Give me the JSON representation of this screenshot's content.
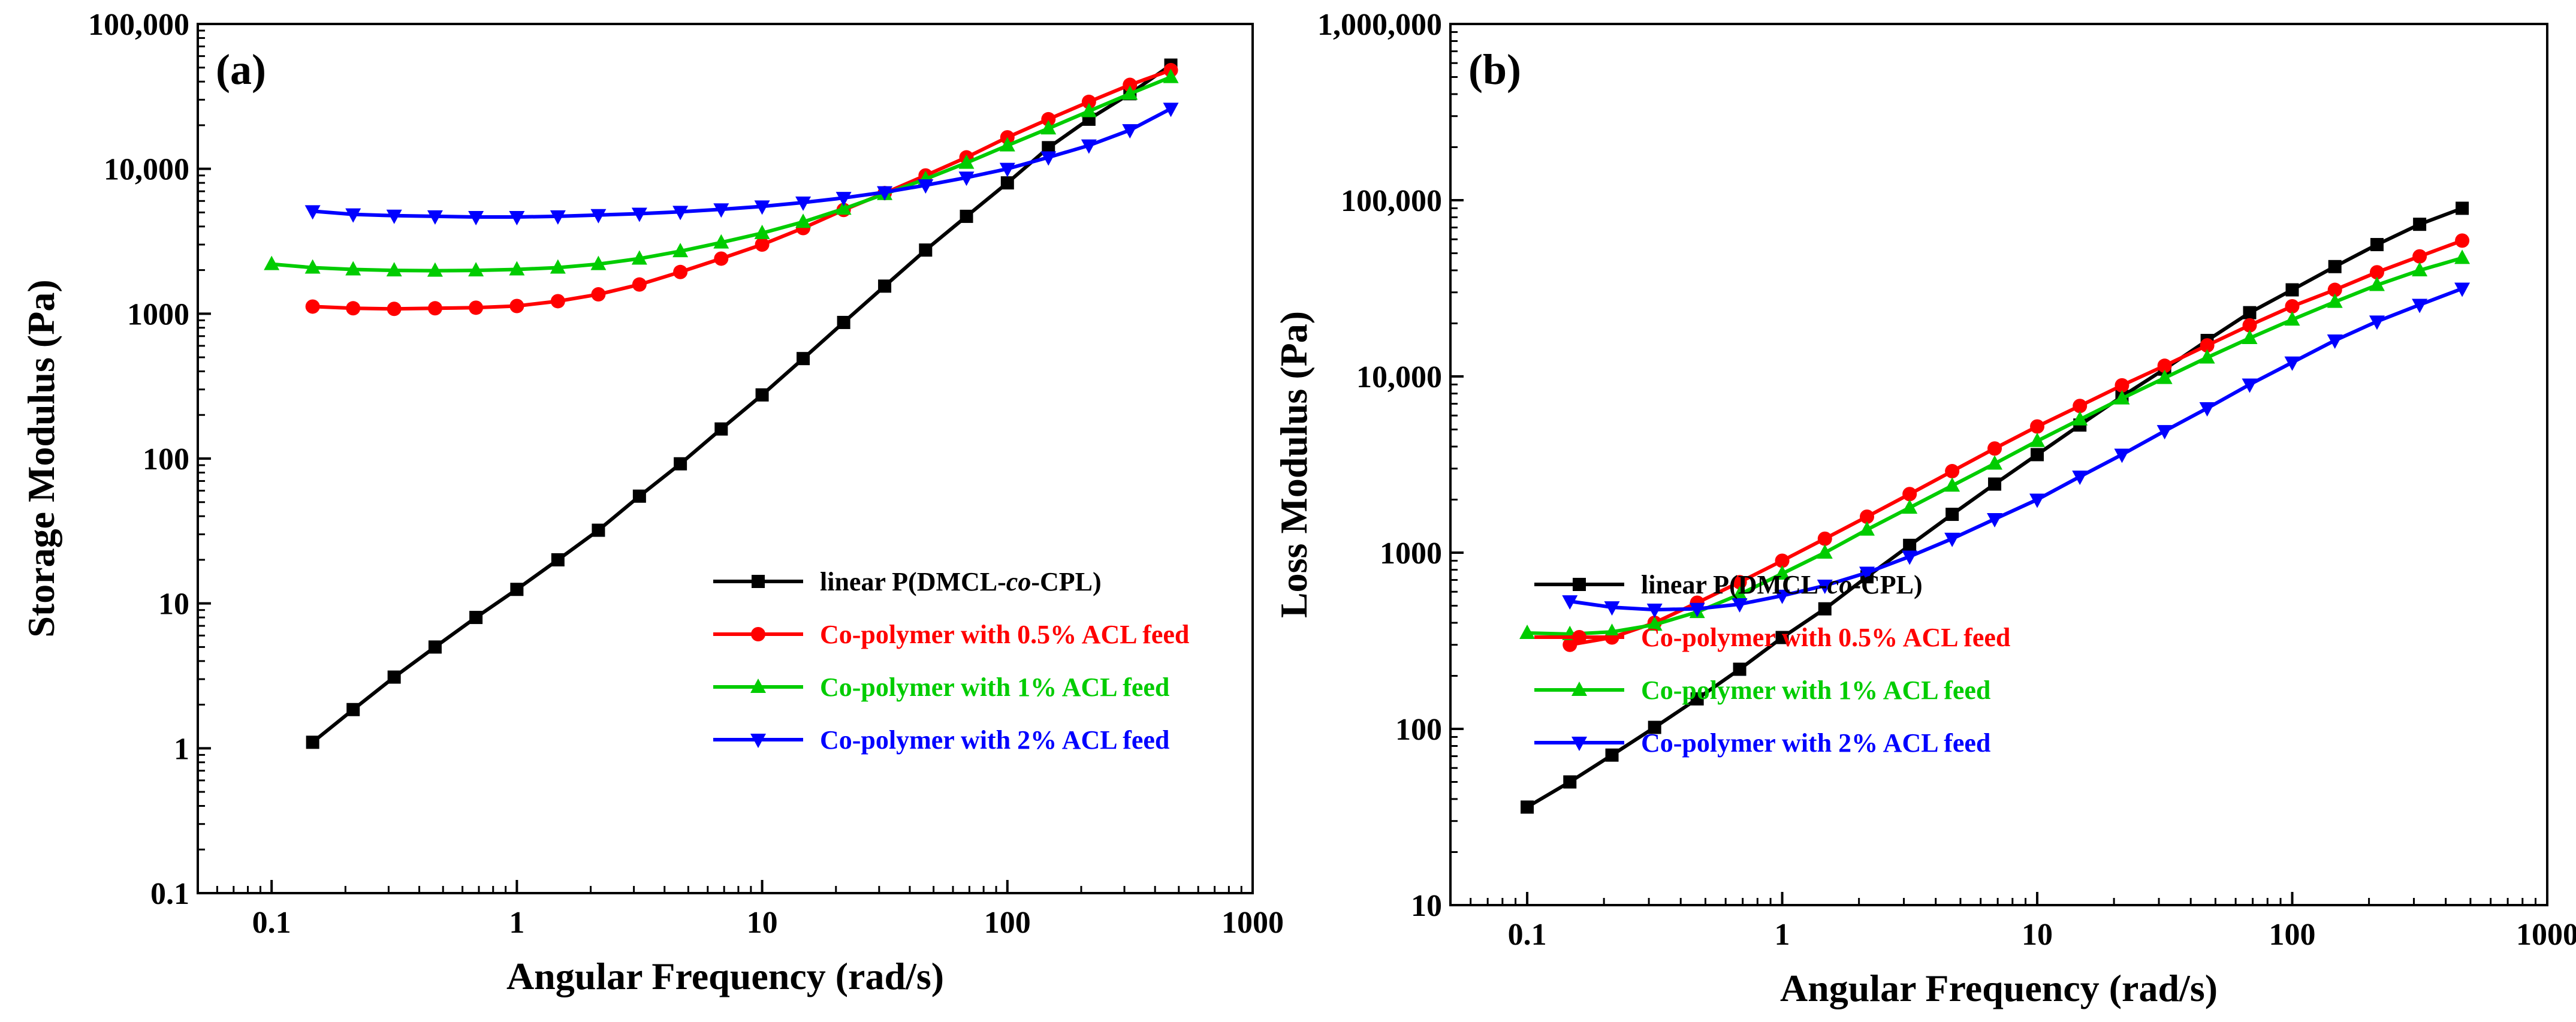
{
  "colors": {
    "linear": "#000000",
    "acl_05": "#ff0000",
    "acl_1": "#00cc00",
    "acl_2": "#0000ff"
  },
  "chart_data": [
    {
      "type": "line",
      "panel_label": "(a)",
      "xlabel": "Angular Frequency (rad/s)",
      "ylabel": "Storage Modulus (Pa)",
      "x_scale": "log",
      "y_scale": "log",
      "xlim": [
        0.05,
        1000
      ],
      "ylim": [
        0.1,
        100000
      ],
      "x_ticks": [
        {
          "v": 0.1,
          "label": "0.1"
        },
        {
          "v": 1,
          "label": "1"
        },
        {
          "v": 10,
          "label": "10"
        },
        {
          "v": 100,
          "label": "100"
        },
        {
          "v": 1000,
          "label": "1000"
        }
      ],
      "y_ticks": [
        {
          "v": 0.1,
          "label": "0.1"
        },
        {
          "v": 1,
          "label": "1"
        },
        {
          "v": 10,
          "label": "10"
        },
        {
          "v": 100,
          "label": "100"
        },
        {
          "v": 1000,
          "label": "1000"
        },
        {
          "v": 10000,
          "label": "10,000"
        },
        {
          "v": 100000,
          "label": "100,000"
        }
      ],
      "grid": false,
      "legend_position": "lower-right",
      "series": [
        {
          "key": "linear",
          "name_parts": [
            "linear P(DMCL-",
            "co",
            "-CPL)"
          ],
          "marker": "square",
          "color_key": "linear",
          "x": [
            0.147,
            0.215,
            0.316,
            0.464,
            0.681,
            1.0,
            1.47,
            2.15,
            3.16,
            4.64,
            6.81,
            10.0,
            14.7,
            21.5,
            31.6,
            46.4,
            68.1,
            100,
            147,
            215,
            316,
            464
          ],
          "y": [
            1.1,
            1.85,
            3.1,
            5.0,
            8.0,
            12.5,
            20,
            32,
            55,
            92,
            160,
            275,
            490,
            870,
            1550,
            2750,
            4700,
            8000,
            14000,
            22000,
            33000,
            52000
          ]
        },
        {
          "key": "acl_05",
          "name_parts": [
            "Co-polymer with 0.5% ACL feed"
          ],
          "marker": "circle",
          "color_key": "acl_05",
          "x": [
            0.147,
            0.215,
            0.316,
            0.464,
            0.681,
            1.0,
            1.47,
            2.15,
            3.16,
            4.64,
            6.81,
            10.0,
            14.7,
            21.5,
            31.6,
            46.4,
            68.1,
            100,
            147,
            215,
            316,
            464
          ],
          "y": [
            1120,
            1090,
            1080,
            1090,
            1100,
            1130,
            1220,
            1360,
            1590,
            1940,
            2400,
            3000,
            3900,
            5200,
            6800,
            9000,
            12000,
            16500,
            22000,
            29000,
            38000,
            48000
          ]
        },
        {
          "key": "acl_1",
          "name_parts": [
            "Co-polymer with 1% ACL feed"
          ],
          "marker": "triangle-up",
          "color_key": "acl_1",
          "x": [
            0.1,
            0.147,
            0.215,
            0.316,
            0.464,
            0.681,
            1.0,
            1.47,
            2.15,
            3.16,
            4.64,
            6.81,
            10.0,
            14.7,
            21.5,
            31.6,
            46.4,
            68.1,
            100,
            147,
            215,
            316,
            464
          ],
          "y": [
            2200,
            2080,
            2020,
            1990,
            1980,
            1990,
            2020,
            2080,
            2200,
            2400,
            2700,
            3100,
            3600,
            4300,
            5300,
            6700,
            8500,
            11000,
            14500,
            19000,
            25000,
            33000,
            43000
          ]
        },
        {
          "key": "acl_2",
          "name_parts": [
            "Co-polymer with 2% ACL feed"
          ],
          "marker": "triangle-down",
          "color_key": "acl_2",
          "x": [
            0.147,
            0.215,
            0.316,
            0.464,
            0.681,
            1.0,
            1.47,
            2.15,
            3.16,
            4.64,
            6.81,
            10.0,
            14.7,
            21.5,
            31.6,
            46.4,
            68.1,
            100,
            147,
            215,
            316,
            464
          ],
          "y": [
            5100,
            4850,
            4750,
            4700,
            4650,
            4650,
            4700,
            4800,
            4900,
            5050,
            5250,
            5500,
            5850,
            6300,
            6900,
            7700,
            8700,
            10000,
            12000,
            14500,
            18500,
            26000
          ]
        }
      ]
    },
    {
      "type": "line",
      "panel_label": "(b)",
      "xlabel": "Angular Frequency (rad/s)",
      "ylabel": "Loss Modulus (Pa)",
      "x_scale": "log",
      "y_scale": "log",
      "xlim": [
        0.05,
        1000
      ],
      "ylim": [
        10,
        1000000
      ],
      "x_ticks": [
        {
          "v": 0.1,
          "label": "0.1"
        },
        {
          "v": 1,
          "label": "1"
        },
        {
          "v": 10,
          "label": "10"
        },
        {
          "v": 100,
          "label": "100"
        },
        {
          "v": 1000,
          "label": "1000"
        }
      ],
      "y_ticks": [
        {
          "v": 10,
          "label": "10"
        },
        {
          "v": 100,
          "label": "100"
        },
        {
          "v": 1000,
          "label": "1000"
        },
        {
          "v": 10000,
          "label": "10,000"
        },
        {
          "v": 100000,
          "label": "100,000"
        },
        {
          "v": 1000000,
          "label": "1,000,000"
        }
      ],
      "grid": false,
      "legend_position": "lower-right",
      "series": [
        {
          "key": "linear",
          "name_parts": [
            "linear P(DMCL-",
            "co",
            "-CPL)"
          ],
          "marker": "square",
          "color_key": "linear",
          "x": [
            0.1,
            0.147,
            0.215,
            0.316,
            0.464,
            0.681,
            1.0,
            1.47,
            2.15,
            3.16,
            4.64,
            6.81,
            10.0,
            14.7,
            21.5,
            31.6,
            46.4,
            68.1,
            100,
            147,
            215,
            316,
            464
          ],
          "y": [
            36,
            50,
            71,
            102,
            148,
            218,
            330,
            480,
            730,
            1100,
            1650,
            2450,
            3600,
            5300,
            7700,
            11000,
            16000,
            23000,
            31000,
            42000,
            56000,
            73000,
            90000
          ]
        },
        {
          "key": "acl_05",
          "name_parts": [
            "Co-polymer with 0.5% ACL feed"
          ],
          "marker": "circle",
          "color_key": "acl_05",
          "x": [
            0.147,
            0.215,
            0.316,
            0.464,
            0.681,
            1.0,
            1.47,
            2.15,
            3.16,
            4.64,
            6.81,
            10.0,
            14.7,
            21.5,
            31.6,
            46.4,
            68.1,
            100,
            147,
            215,
            316,
            464
          ],
          "y": [
            300,
            330,
            400,
            520,
            680,
            900,
            1200,
            1600,
            2150,
            2900,
            3900,
            5200,
            6800,
            8900,
            11500,
            15000,
            19500,
            25000,
            31000,
            39000,
            48000,
            59000
          ]
        },
        {
          "key": "acl_1",
          "name_parts": [
            "Co-polymer with 1% ACL feed"
          ],
          "marker": "triangle-up",
          "color_key": "acl_1",
          "x": [
            0.1,
            0.147,
            0.215,
            0.316,
            0.464,
            0.681,
            1.0,
            1.47,
            2.15,
            3.16,
            4.64,
            6.81,
            10.0,
            14.7,
            21.5,
            31.6,
            46.4,
            68.1,
            100,
            147,
            215,
            316,
            464
          ],
          "y": [
            350,
            345,
            355,
            390,
            460,
            580,
            760,
            1000,
            1350,
            1800,
            2400,
            3200,
            4300,
            5700,
            7500,
            9800,
            12800,
            16500,
            21000,
            26500,
            33000,
            40000,
            47000
          ]
        },
        {
          "key": "acl_2",
          "name_parts": [
            "Co-polymer with 2% ACL feed"
          ],
          "marker": "triangle-down",
          "color_key": "acl_2",
          "x": [
            0.147,
            0.215,
            0.316,
            0.464,
            0.681,
            1.0,
            1.47,
            2.15,
            3.16,
            4.64,
            6.81,
            10.0,
            14.7,
            21.5,
            31.6,
            46.4,
            68.1,
            100,
            147,
            215,
            316,
            464
          ],
          "y": [
            530,
            490,
            475,
            480,
            510,
            570,
            650,
            770,
            950,
            1200,
            1550,
            2000,
            2700,
            3600,
            4900,
            6600,
            9000,
            12000,
            16000,
            20500,
            25500,
            31500
          ]
        }
      ]
    }
  ]
}
